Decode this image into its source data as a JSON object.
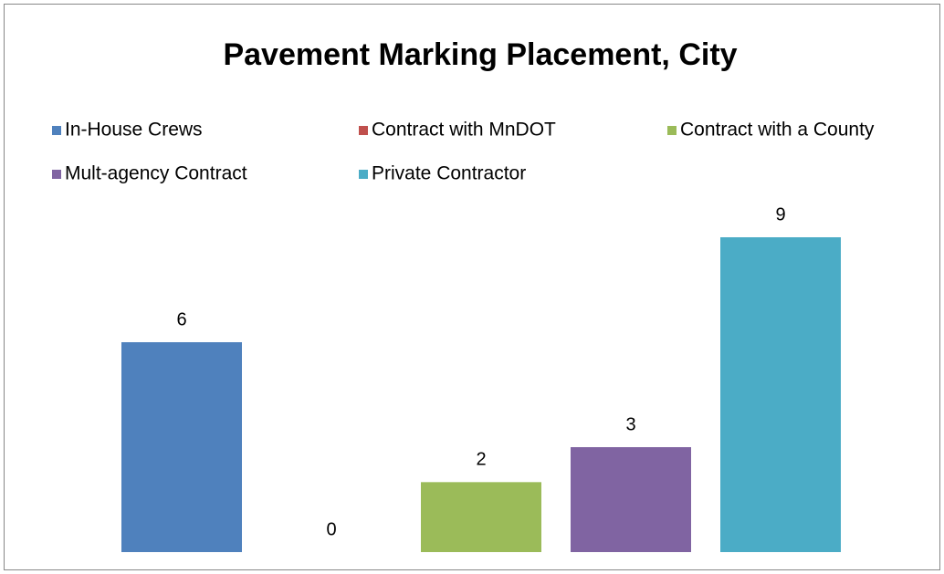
{
  "chart_data": {
    "type": "bar",
    "title": "Pavement Marking Placement, City",
    "series": [
      {
        "name": "In-House Crews",
        "color": "#4f81bd",
        "values": [
          6
        ]
      },
      {
        "name": "Contract with MnDOT",
        "color": "#c0504d",
        "values": [
          0
        ]
      },
      {
        "name": "Contract with a County",
        "color": "#9bbb59",
        "values": [
          2
        ]
      },
      {
        "name": "Mult-agency Contract",
        "color": "#8064a2",
        "values": [
          3
        ]
      },
      {
        "name": "Private Contractor",
        "color": "#4bacc6",
        "values": [
          9
        ]
      }
    ],
    "legend": "top"
  }
}
